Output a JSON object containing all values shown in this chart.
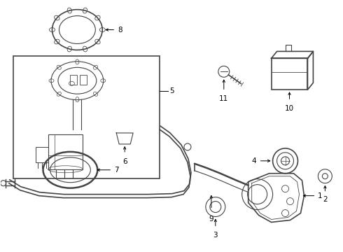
{
  "background_color": "#ffffff",
  "line_color": "#444444",
  "label_color": "#000000",
  "fig_width": 4.9,
  "fig_height": 3.6,
  "dpi": 100
}
